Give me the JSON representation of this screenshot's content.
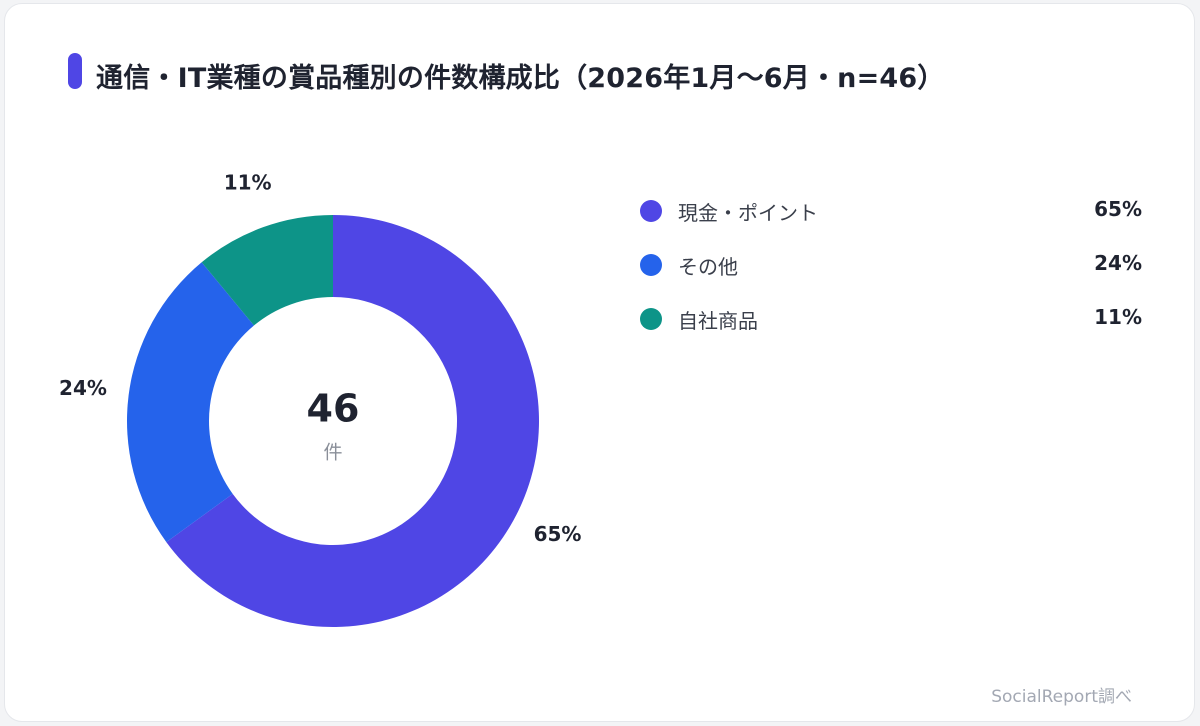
{
  "title": "通信・IT業種の賞品種別の件数構成比（2026年1月〜6月・n=46）",
  "accent_color": "#4f46e5",
  "footer": "SocialReport調べ",
  "center": {
    "value": "46",
    "unit": "件"
  },
  "chart_data": {
    "type": "pie",
    "title": "通信・IT業種の賞品種別の件数構成比（2026年1月〜6月・n=46）",
    "total": 46,
    "unit": "件",
    "slices": [
      {
        "label": "現金・ポイント",
        "value": 65,
        "value_label": "65%",
        "color": "#4f46e5"
      },
      {
        "label": "その他",
        "value": 24,
        "value_label": "24%",
        "color": "#2563eb"
      },
      {
        "label": "自社商品",
        "value": 11,
        "value_label": "11%",
        "color": "#0d9488"
      }
    ],
    "legend_position": "right"
  }
}
